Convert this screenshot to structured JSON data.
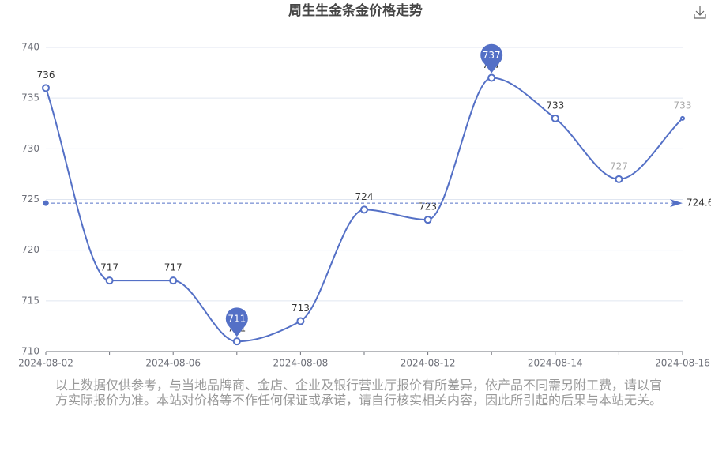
{
  "chart_data": {
    "type": "line",
    "title": "周生生金条金价格走势",
    "categories": [
      "2024-08-02",
      null,
      "2024-08-06",
      null,
      "2024-08-08",
      null,
      "2024-08-12",
      null,
      "2024-08-14",
      null,
      "2024-08-16"
    ],
    "series": [
      {
        "color": "#5470c6",
        "values": [
          736,
          717,
          717,
          711,
          713,
          724,
          723,
          737,
          733,
          727,
          733
        ]
      }
    ],
    "ylim": [
      710,
      740
    ],
    "yticks": [
      710,
      715,
      720,
      725,
      730,
      735,
      740
    ],
    "grid": true,
    "mean_line": {
      "value": 724.64,
      "label": "724.6"
    },
    "max_point": 7,
    "min_point": 3
  },
  "disclaimer": "以上数据仅供参考，与当地品牌商、金店、企业及银行营业厅报价有所差异，依产品不同需另附工费，请以官方实际报价为准。本站对价格等不作任何保证或承诺，请自行核实相关内容，因此所引起的后果与本站无关。"
}
